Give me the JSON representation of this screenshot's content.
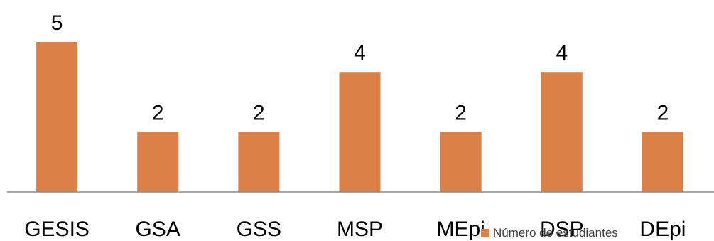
{
  "chart_data": {
    "type": "bar",
    "categories": [
      "GESIS",
      "GSA",
      "GSS",
      "MSP",
      "MEpi",
      "DSP",
      "DEpi"
    ],
    "series": [
      {
        "name": "Número de estudiantes",
        "values": [
          5,
          2,
          2,
          4,
          2,
          4,
          2
        ],
        "color": "#DD8047"
      }
    ],
    "data_labels": [
      "5",
      "2",
      "2",
      "4",
      "2",
      "4",
      "2"
    ],
    "ylim": [
      0,
      5
    ],
    "grid": false,
    "legend_position": "bottom-right"
  }
}
